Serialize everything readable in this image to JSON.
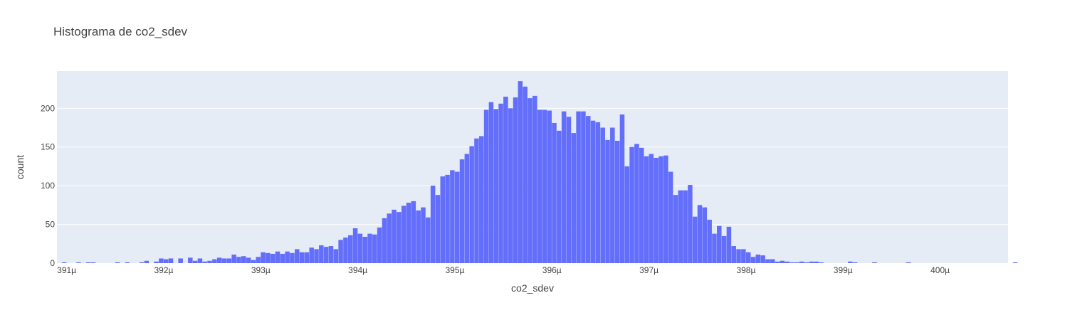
{
  "chart_data": {
    "type": "bar",
    "title": "Histograma de co2_sdev",
    "xlabel": "co2_sdev",
    "ylabel": "count",
    "bar_color": "#636efa",
    "plot_background": "#e5ecf6",
    "grid": true,
    "x_unit": "µ",
    "xlim": [
      390.9,
      400.7
    ],
    "ylim": [
      0,
      248
    ],
    "x_ticks": [
      391,
      392,
      393,
      394,
      395,
      396,
      397,
      398,
      399,
      400
    ],
    "x_tick_labels": [
      "391µ",
      "392µ",
      "393µ",
      "394µ",
      "395µ",
      "396µ",
      "397µ",
      "398µ",
      "399µ",
      "400µ"
    ],
    "y_ticks": [
      0,
      50,
      100,
      150,
      200
    ],
    "y_tick_labels": [
      "0",
      "50",
      "100",
      "150",
      "200"
    ],
    "bin_width": 0.05,
    "x_start": 390.95,
    "values": [
      1,
      0,
      0,
      1,
      0,
      1,
      1,
      0,
      0,
      0,
      0,
      1,
      0,
      1,
      0,
      0,
      1,
      3,
      0,
      2,
      6,
      5,
      6,
      0,
      6,
      0,
      7,
      3,
      6,
      2,
      3,
      5,
      7,
      6,
      6,
      11,
      8,
      9,
      7,
      4,
      8,
      14,
      13,
      12,
      15,
      12,
      15,
      13,
      18,
      14,
      14,
      20,
      18,
      23,
      21,
      22,
      18,
      30,
      33,
      36,
      45,
      38,
      34,
      38,
      37,
      46,
      58,
      64,
      69,
      66,
      74,
      78,
      80,
      68,
      72,
      59,
      100,
      88,
      112,
      114,
      120,
      118,
      134,
      141,
      151,
      161,
      164,
      198,
      208,
      199,
      206,
      215,
      200,
      214,
      235,
      228,
      213,
      216,
      198,
      198,
      197,
      181,
      171,
      196,
      189,
      168,
      196,
      196,
      190,
      184,
      182,
      175,
      159,
      175,
      158,
      192,
      125,
      150,
      154,
      149,
      138,
      141,
      136,
      138,
      139,
      118,
      88,
      94,
      94,
      101,
      60,
      75,
      72,
      56,
      38,
      48,
      35,
      47,
      22,
      18,
      18,
      14,
      8,
      11,
      10,
      5,
      5,
      2,
      3,
      2,
      1,
      1,
      2,
      1,
      2,
      2,
      1,
      0,
      0,
      0,
      0,
      0,
      2,
      1,
      0,
      0,
      0,
      1,
      0,
      0,
      0,
      0,
      0,
      0,
      1,
      0,
      0,
      0,
      0,
      0,
      0,
      0,
      0,
      0,
      0,
      0,
      0,
      0,
      0,
      0,
      0,
      0,
      0,
      0,
      0,
      0,
      1
    ]
  }
}
